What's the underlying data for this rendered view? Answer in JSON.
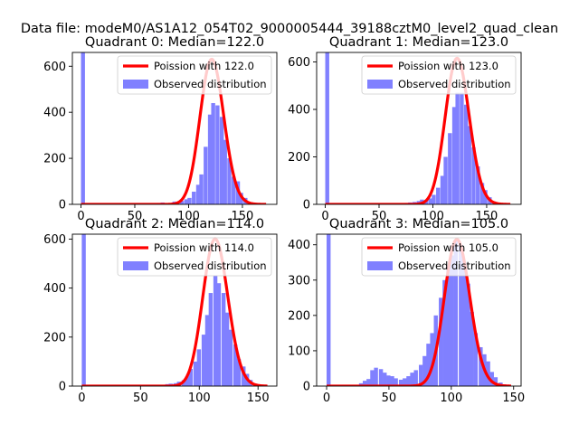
{
  "figure": {
    "suptitle": "Data file: modeM0/AS1A12_054T02_9000005444_39188cztM0_level2_quad_clean"
  },
  "colors": {
    "hist": "#8080ff",
    "fit": "#ff0000",
    "axes": "#000000",
    "legend_border": "#cccccc"
  },
  "chart_data": [
    {
      "type": "bar",
      "title": "Quadrant 0: Median=122.0",
      "xlim": [
        -8,
        182
      ],
      "ylim": [
        0,
        660
      ],
      "xticks": [
        0,
        50,
        100,
        150
      ],
      "yticks": [
        0,
        200,
        400,
        600
      ],
      "legend": {
        "placement": "top-right",
        "entries": [
          "Poission with 122.0",
          "Observed distribution"
        ]
      },
      "fit": {
        "name": "Poission with 122.0",
        "lambda": 122.0,
        "peak": 630,
        "x_range": [
          0,
          172
        ]
      },
      "hist": {
        "name": "Observed distribution",
        "bin_width": 3.7,
        "bins": [
          [
            0,
            660
          ],
          [
            70,
            6
          ],
          [
            74,
            8
          ],
          [
            77,
            4
          ],
          [
            81,
            5
          ],
          [
            85,
            12
          ],
          [
            88,
            10
          ],
          [
            92,
            15
          ],
          [
            96,
            22
          ],
          [
            99,
            28
          ],
          [
            103,
            55
          ],
          [
            107,
            85
          ],
          [
            110,
            130
          ],
          [
            114,
            250
          ],
          [
            118,
            390
          ],
          [
            121,
            440
          ],
          [
            125,
            430
          ],
          [
            129,
            380
          ],
          [
            132,
            280
          ],
          [
            136,
            200
          ],
          [
            140,
            120
          ],
          [
            144,
            100
          ],
          [
            147,
            50
          ],
          [
            151,
            28
          ],
          [
            155,
            10
          ],
          [
            158,
            4
          ]
        ]
      }
    },
    {
      "type": "bar",
      "title": "Quadrant 1: Median=123.0",
      "xlim": [
        -8,
        182
      ],
      "ylim": [
        0,
        640
      ],
      "xticks": [
        0,
        50,
        100,
        150
      ],
      "yticks": [
        0,
        200,
        400,
        600
      ],
      "legend": {
        "placement": "top-right",
        "entries": [
          "Poission with 123.0",
          "Observed distribution"
        ]
      },
      "fit": {
        "name": "Poission with 123.0",
        "lambda": 123.0,
        "peak": 615,
        "x_range": [
          0,
          172
        ]
      },
      "hist": {
        "name": "Observed distribution",
        "bin_width": 3.7,
        "bins": [
          [
            0,
            640
          ],
          [
            70,
            4
          ],
          [
            74,
            6
          ],
          [
            77,
            8
          ],
          [
            81,
            10
          ],
          [
            85,
            14
          ],
          [
            88,
            20
          ],
          [
            92,
            18
          ],
          [
            96,
            25
          ],
          [
            99,
            40
          ],
          [
            103,
            70
          ],
          [
            107,
            120
          ],
          [
            110,
            200
          ],
          [
            114,
            300
          ],
          [
            118,
            410
          ],
          [
            121,
            470
          ],
          [
            125,
            470
          ],
          [
            129,
            420
          ],
          [
            132,
            330
          ],
          [
            136,
            240
          ],
          [
            140,
            160
          ],
          [
            144,
            90
          ],
          [
            147,
            60
          ],
          [
            151,
            30
          ],
          [
            155,
            12
          ],
          [
            158,
            5
          ]
        ]
      }
    },
    {
      "type": "bar",
      "title": "Quadrant 2: Median=114.0",
      "xlim": [
        -8,
        166
      ],
      "ylim": [
        0,
        620
      ],
      "xticks": [
        0,
        50,
        100,
        150
      ],
      "yticks": [
        0,
        200,
        400,
        600
      ],
      "legend": {
        "placement": "top-right",
        "entries": [
          "Poission with 114.0",
          "Observed distribution"
        ]
      },
      "fit": {
        "name": "Poission with 114.0",
        "lambda": 114.0,
        "peak": 600,
        "x_range": [
          0,
          158
        ]
      },
      "hist": {
        "name": "Observed distribution",
        "bin_width": 3.4,
        "bins": [
          [
            0,
            620
          ],
          [
            68,
            5
          ],
          [
            71,
            8
          ],
          [
            74,
            10
          ],
          [
            78,
            12
          ],
          [
            81,
            18
          ],
          [
            85,
            24
          ],
          [
            88,
            40
          ],
          [
            91,
            70
          ],
          [
            95,
            100
          ],
          [
            98,
            150
          ],
          [
            102,
            210
          ],
          [
            105,
            290
          ],
          [
            108,
            380
          ],
          [
            112,
            450
          ],
          [
            115,
            420
          ],
          [
            119,
            380
          ],
          [
            122,
            300
          ],
          [
            125,
            230
          ],
          [
            129,
            170
          ],
          [
            132,
            110
          ],
          [
            136,
            80
          ],
          [
            139,
            50
          ],
          [
            142,
            25
          ],
          [
            146,
            10
          ],
          [
            149,
            5
          ]
        ]
      }
    },
    {
      "type": "bar",
      "title": "Quadrant 3: Median=105.0",
      "xlim": [
        -8,
        156
      ],
      "ylim": [
        0,
        430
      ],
      "xticks": [
        0,
        50,
        100,
        150
      ],
      "yticks": [
        0,
        100,
        200,
        300,
        400
      ],
      "legend": {
        "placement": "top-right",
        "entries": [
          "Poission with 105.0",
          "Observed distribution"
        ]
      },
      "fit": {
        "name": "Poission with 105.0",
        "lambda": 105.0,
        "peak": 415,
        "x_range": [
          0,
          148
        ]
      },
      "hist": {
        "name": "Observed distribution",
        "bin_width": 3.2,
        "bins": [
          [
            0,
            430
          ],
          [
            22,
            3
          ],
          [
            26,
            8
          ],
          [
            29,
            15
          ],
          [
            32,
            20
          ],
          [
            35,
            45
          ],
          [
            38,
            52
          ],
          [
            42,
            48
          ],
          [
            45,
            38
          ],
          [
            48,
            30
          ],
          [
            51,
            28
          ],
          [
            54,
            22
          ],
          [
            58,
            18
          ],
          [
            61,
            22
          ],
          [
            64,
            28
          ],
          [
            67,
            38
          ],
          [
            70,
            45
          ],
          [
            74,
            60
          ],
          [
            77,
            85
          ],
          [
            80,
            120
          ],
          [
            83,
            150
          ],
          [
            86,
            200
          ],
          [
            90,
            250
          ],
          [
            93,
            300
          ],
          [
            96,
            340
          ],
          [
            99,
            370
          ],
          [
            102,
            410
          ],
          [
            106,
            400
          ],
          [
            109,
            350
          ],
          [
            112,
            290
          ],
          [
            115,
            210
          ],
          [
            118,
            150
          ],
          [
            122,
            110
          ],
          [
            125,
            90
          ],
          [
            128,
            70
          ],
          [
            131,
            40
          ],
          [
            134,
            25
          ],
          [
            138,
            10
          ],
          [
            141,
            5
          ]
        ]
      }
    }
  ]
}
